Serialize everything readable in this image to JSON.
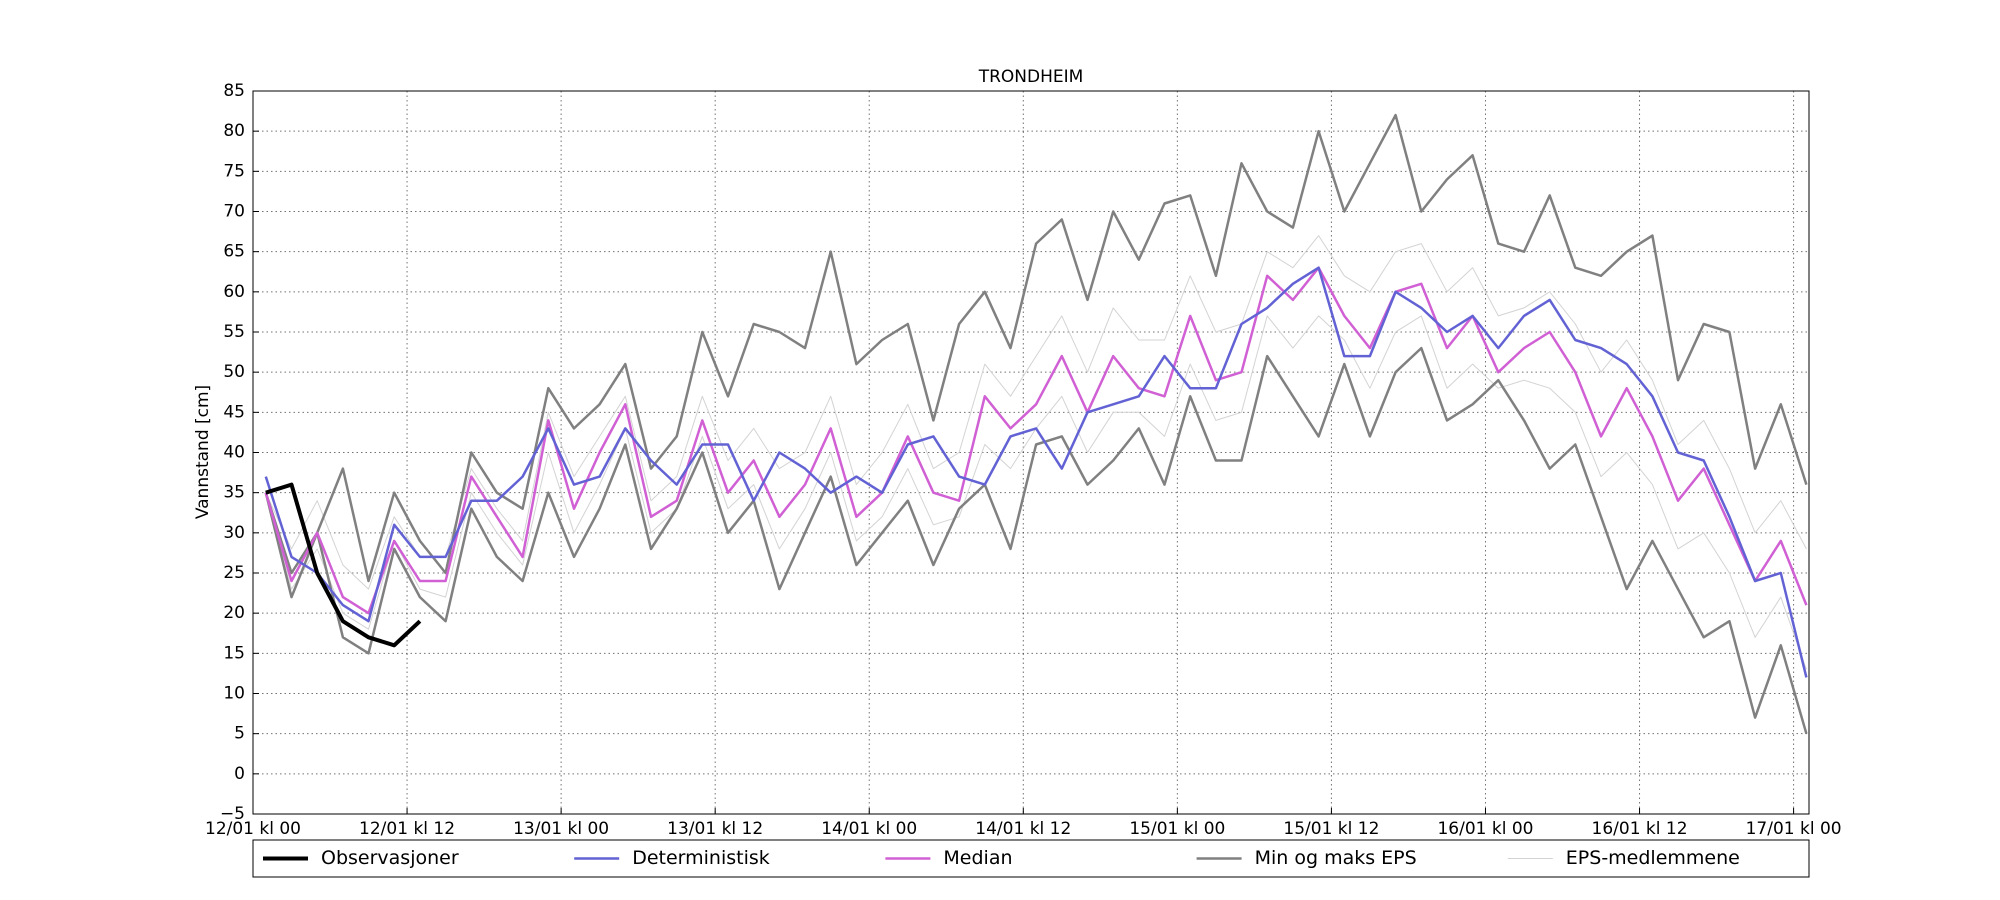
{
  "chart_data": {
    "type": "line",
    "title": "TRONDHEIM",
    "y_label": "Vannstand [cm]",
    "x": [
      1,
      3,
      5,
      7,
      9,
      11,
      13,
      15,
      17,
      19,
      21,
      23,
      25,
      27,
      29,
      31,
      33,
      35,
      37,
      39,
      41,
      43,
      45,
      47,
      49,
      51,
      53,
      55,
      57,
      59,
      61,
      63,
      65,
      67,
      69,
      71,
      73,
      75,
      77,
      79,
      81,
      83,
      85,
      87,
      89,
      91,
      93,
      95,
      97,
      99,
      101,
      103,
      105,
      107,
      109,
      111,
      113,
      115,
      117,
      119,
      121
    ],
    "xlim": [
      0,
      121.2
    ],
    "xticks": [
      {
        "value": 0,
        "label": "12/01 kl 00"
      },
      {
        "value": 12,
        "label": "12/01 kl 12"
      },
      {
        "value": 24,
        "label": "13/01 kl 00"
      },
      {
        "value": 36,
        "label": "13/01 kl 12"
      },
      {
        "value": 48,
        "label": "14/01 kl 00"
      },
      {
        "value": 60,
        "label": "14/01 kl 12"
      },
      {
        "value": 72,
        "label": "15/01 kl 00"
      },
      {
        "value": 84,
        "label": "15/01 kl 12"
      },
      {
        "value": 96,
        "label": "16/01 kl 00"
      },
      {
        "value": 108,
        "label": "16/01 kl 12"
      },
      {
        "value": 120,
        "label": "17/01 kl 00"
      }
    ],
    "ylim": [
      -5,
      85
    ],
    "yticks": [
      {
        "value": -5,
        "label": "−5"
      },
      0,
      5,
      10,
      15,
      20,
      25,
      30,
      35,
      40,
      45,
      50,
      55,
      60,
      65,
      70,
      75,
      80,
      85
    ],
    "grid": true,
    "series": [
      {
        "name": "Observasjoner",
        "color": "#000000",
        "values": [
          35,
          36,
          25,
          19,
          17,
          16,
          19,
          null,
          null,
          null,
          null,
          null,
          null,
          null,
          null,
          null,
          null,
          null,
          null,
          null,
          null,
          null,
          null,
          null,
          null,
          null,
          null,
          null,
          null,
          null,
          null,
          null,
          null,
          null,
          null,
          null,
          null,
          null,
          null,
          null,
          null,
          null,
          null,
          null,
          null,
          null,
          null,
          null,
          null,
          null,
          null,
          null,
          null,
          null,
          null,
          null,
          null,
          null,
          null,
          null,
          null
        ]
      },
      {
        "name": "Deterministisk",
        "color": "#6262d4",
        "values": [
          37,
          27,
          25,
          21,
          19,
          31,
          27,
          27,
          34,
          34,
          37,
          43,
          36,
          37,
          43,
          39,
          36,
          41,
          41,
          34,
          40,
          38,
          35,
          37,
          35,
          41,
          42,
          37,
          36,
          42,
          43,
          38,
          45,
          46,
          47,
          52,
          48,
          48,
          56,
          58,
          61,
          63,
          52,
          52,
          60,
          58,
          55,
          57,
          53,
          57,
          59,
          54,
          53,
          51,
          47,
          40,
          39,
          32,
          24,
          25,
          12
        ]
      },
      {
        "name": "Median",
        "color": "#d060d4",
        "values": [
          35,
          24,
          30,
          22,
          20,
          29,
          24,
          24,
          37,
          32,
          27,
          44,
          33,
          40,
          46,
          32,
          34,
          44,
          35,
          39,
          32,
          36,
          43,
          32,
          35,
          42,
          35,
          34,
          47,
          43,
          46,
          52,
          45,
          52,
          48,
          47,
          57,
          49,
          50,
          62,
          59,
          63,
          57,
          53,
          60,
          61,
          53,
          57,
          50,
          53,
          55,
          50,
          42,
          48,
          42,
          34,
          38,
          31,
          24,
          29,
          21
        ]
      },
      {
        "name": "Min og maks EPS",
        "color": "#808080",
        "lines": [
          [
            35,
            22,
            30,
            17,
            15,
            28,
            22,
            19,
            33,
            27,
            24,
            35,
            27,
            33,
            41,
            28,
            33,
            40,
            30,
            34,
            23,
            30,
            37,
            26,
            30,
            34,
            26,
            33,
            36,
            28,
            41,
            42,
            36,
            39,
            43,
            36,
            47,
            39,
            39,
            52,
            47,
            42,
            51,
            42,
            50,
            53,
            44,
            46,
            49,
            44,
            38,
            41,
            32,
            23,
            29,
            23,
            17,
            19,
            7,
            16,
            5
          ],
          [
            35,
            25,
            30,
            38,
            24,
            35,
            29,
            25,
            40,
            35,
            33,
            48,
            43,
            46,
            51,
            38,
            42,
            55,
            47,
            56,
            55,
            53,
            65,
            51,
            54,
            56,
            44,
            56,
            60,
            53,
            66,
            69,
            59,
            70,
            64,
            71,
            72,
            62,
            76,
            70,
            68,
            80,
            70,
            76,
            82,
            70,
            74,
            77,
            66,
            65,
            72,
            63,
            62,
            65,
            67,
            49,
            56,
            55,
            38,
            46,
            36
          ]
        ]
      },
      {
        "name": "EPS-medlemmene",
        "color": "#d3d3d3",
        "lines": [
          [
            35,
            28,
            34,
            26,
            23,
            32,
            27,
            27,
            38,
            33,
            29,
            45,
            37,
            42,
            47,
            34,
            37,
            47,
            39,
            43,
            38,
            40,
            47,
            36,
            40,
            46,
            38,
            40,
            51,
            47,
            52,
            57,
            50,
            58,
            54,
            54,
            62,
            55,
            56,
            65,
            63,
            67,
            62,
            60,
            65,
            66,
            60,
            63,
            57,
            58,
            60,
            56,
            50,
            54,
            49,
            41,
            44,
            38,
            30,
            34,
            28
          ],
          [
            35,
            23,
            28,
            20,
            18,
            29,
            23,
            22,
            35,
            30,
            26,
            40,
            30,
            36,
            43,
            30,
            33,
            42,
            33,
            36,
            28,
            33,
            40,
            29,
            32,
            38,
            31,
            32,
            41,
            38,
            43,
            47,
            40,
            45,
            45,
            42,
            51,
            44,
            45,
            57,
            53,
            57,
            54,
            48,
            55,
            57,
            48,
            51,
            48,
            49,
            48,
            45,
            37,
            40,
            36,
            28,
            30,
            25,
            17,
            22,
            13
          ]
        ]
      }
    ]
  }
}
